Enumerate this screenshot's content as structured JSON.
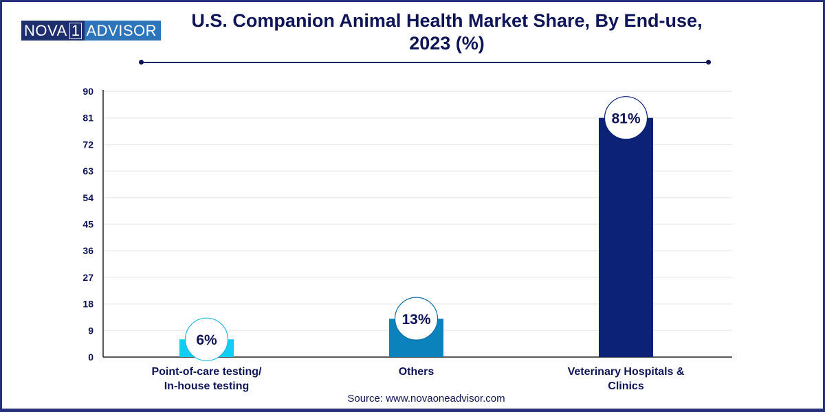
{
  "brand": {
    "logo_left": "NOVA",
    "logo_mid": "1",
    "logo_right": "ADVISOR"
  },
  "chart_data": {
    "type": "bar",
    "title": "U.S. Companion Animal Health Market Share, By End-use, 2023 (%)",
    "title_lines": [
      "U.S. Companion Animal Health Market Share, By End-use,",
      "2023 (%)"
    ],
    "categories": [
      "Point-of-care testing/ In-house testing",
      "Others",
      "Veterinary Hospitals & Clinics"
    ],
    "category_lines": [
      [
        "Point-of-care testing/",
        "In-house testing"
      ],
      [
        "Others"
      ],
      [
        "Veterinary Hospitals &",
        "Clinics"
      ]
    ],
    "values": [
      6,
      13,
      81
    ],
    "data_labels": [
      "6%",
      "13%",
      "81%"
    ],
    "colors": [
      "#0fcdf5",
      "#0c82bd",
      "#0b2277"
    ],
    "xlabel": "",
    "ylabel": "",
    "ylim": [
      0,
      90
    ],
    "yticks": [
      0,
      9,
      18,
      27,
      36,
      45,
      54,
      63,
      72,
      81,
      90
    ],
    "grid": true,
    "legend": "none"
  },
  "source": "Source: www.novaoneadvisor.com"
}
